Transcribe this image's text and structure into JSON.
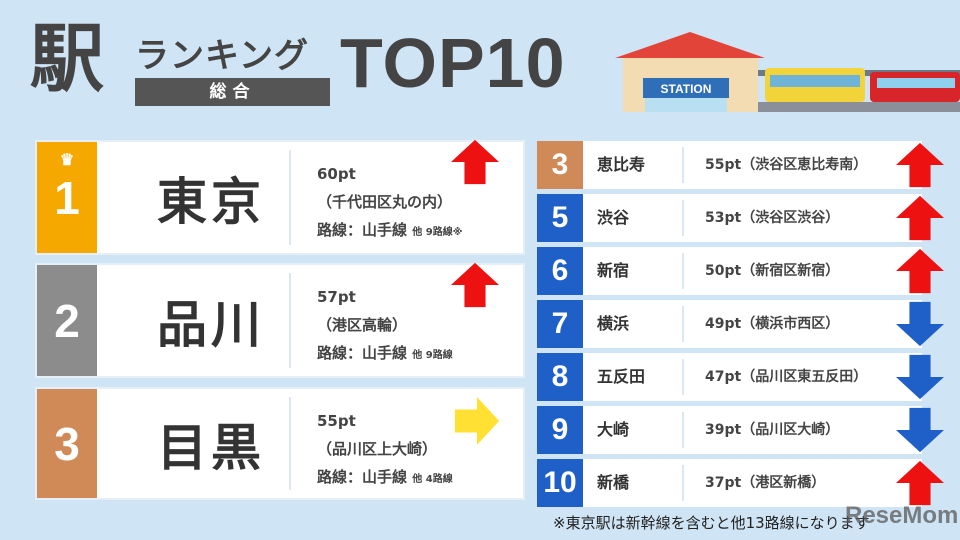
{
  "header": {
    "kanji": "駅",
    "subtitle": "ランキング",
    "category": "総合",
    "top": "TOP10",
    "station_sign": "STATION"
  },
  "colors": {
    "gold": "#f5a800",
    "silver": "#8c8c8c",
    "bronze": "#d08a58",
    "blue": "#1f5fc8",
    "up": "#ee1111",
    "down": "#1f5fc8",
    "same": "#ffe033"
  },
  "top3": [
    {
      "rank": "1",
      "name": "東京",
      "points": "60pt",
      "area": "（千代田区丸の内）",
      "lines": "路線：山手線",
      "others": "他 9路線※",
      "trend": "up",
      "crown": true
    },
    {
      "rank": "2",
      "name": "品川",
      "points": "57pt",
      "area": "（港区高輪）",
      "lines": "路線：山手線",
      "others": "他 9路線",
      "trend": "up"
    },
    {
      "rank": "3",
      "name": "目黒",
      "points": "55pt",
      "area": "（品川区上大崎）",
      "lines": "路線：山手線",
      "others": "他 4路線",
      "trend": "same"
    }
  ],
  "list": [
    {
      "rank": "3",
      "name": "恵比寿",
      "detail": "55pt（渋谷区恵比寿南）",
      "trend": "up",
      "color": "bronze"
    },
    {
      "rank": "5",
      "name": "渋谷",
      "detail": "53pt（渋谷区渋谷）",
      "trend": "up",
      "color": "blue"
    },
    {
      "rank": "6",
      "name": "新宿",
      "detail": "50pt（新宿区新宿）",
      "trend": "up",
      "color": "blue"
    },
    {
      "rank": "7",
      "name": "横浜",
      "detail": "49pt（横浜市西区）",
      "trend": "down",
      "color": "blue"
    },
    {
      "rank": "8",
      "name": "五反田",
      "detail": "47pt（品川区東五反田）",
      "trend": "down",
      "color": "blue"
    },
    {
      "rank": "9",
      "name": "大崎",
      "detail": "39pt（品川区大崎）",
      "trend": "down",
      "color": "blue"
    },
    {
      "rank": "10",
      "name": "新橋",
      "detail": "37pt（港区新橋）",
      "trend": "up",
      "color": "blue"
    }
  ],
  "footnote": "※東京駅は新幹線を含むと他13路線になります",
  "watermark": "ReseMom"
}
